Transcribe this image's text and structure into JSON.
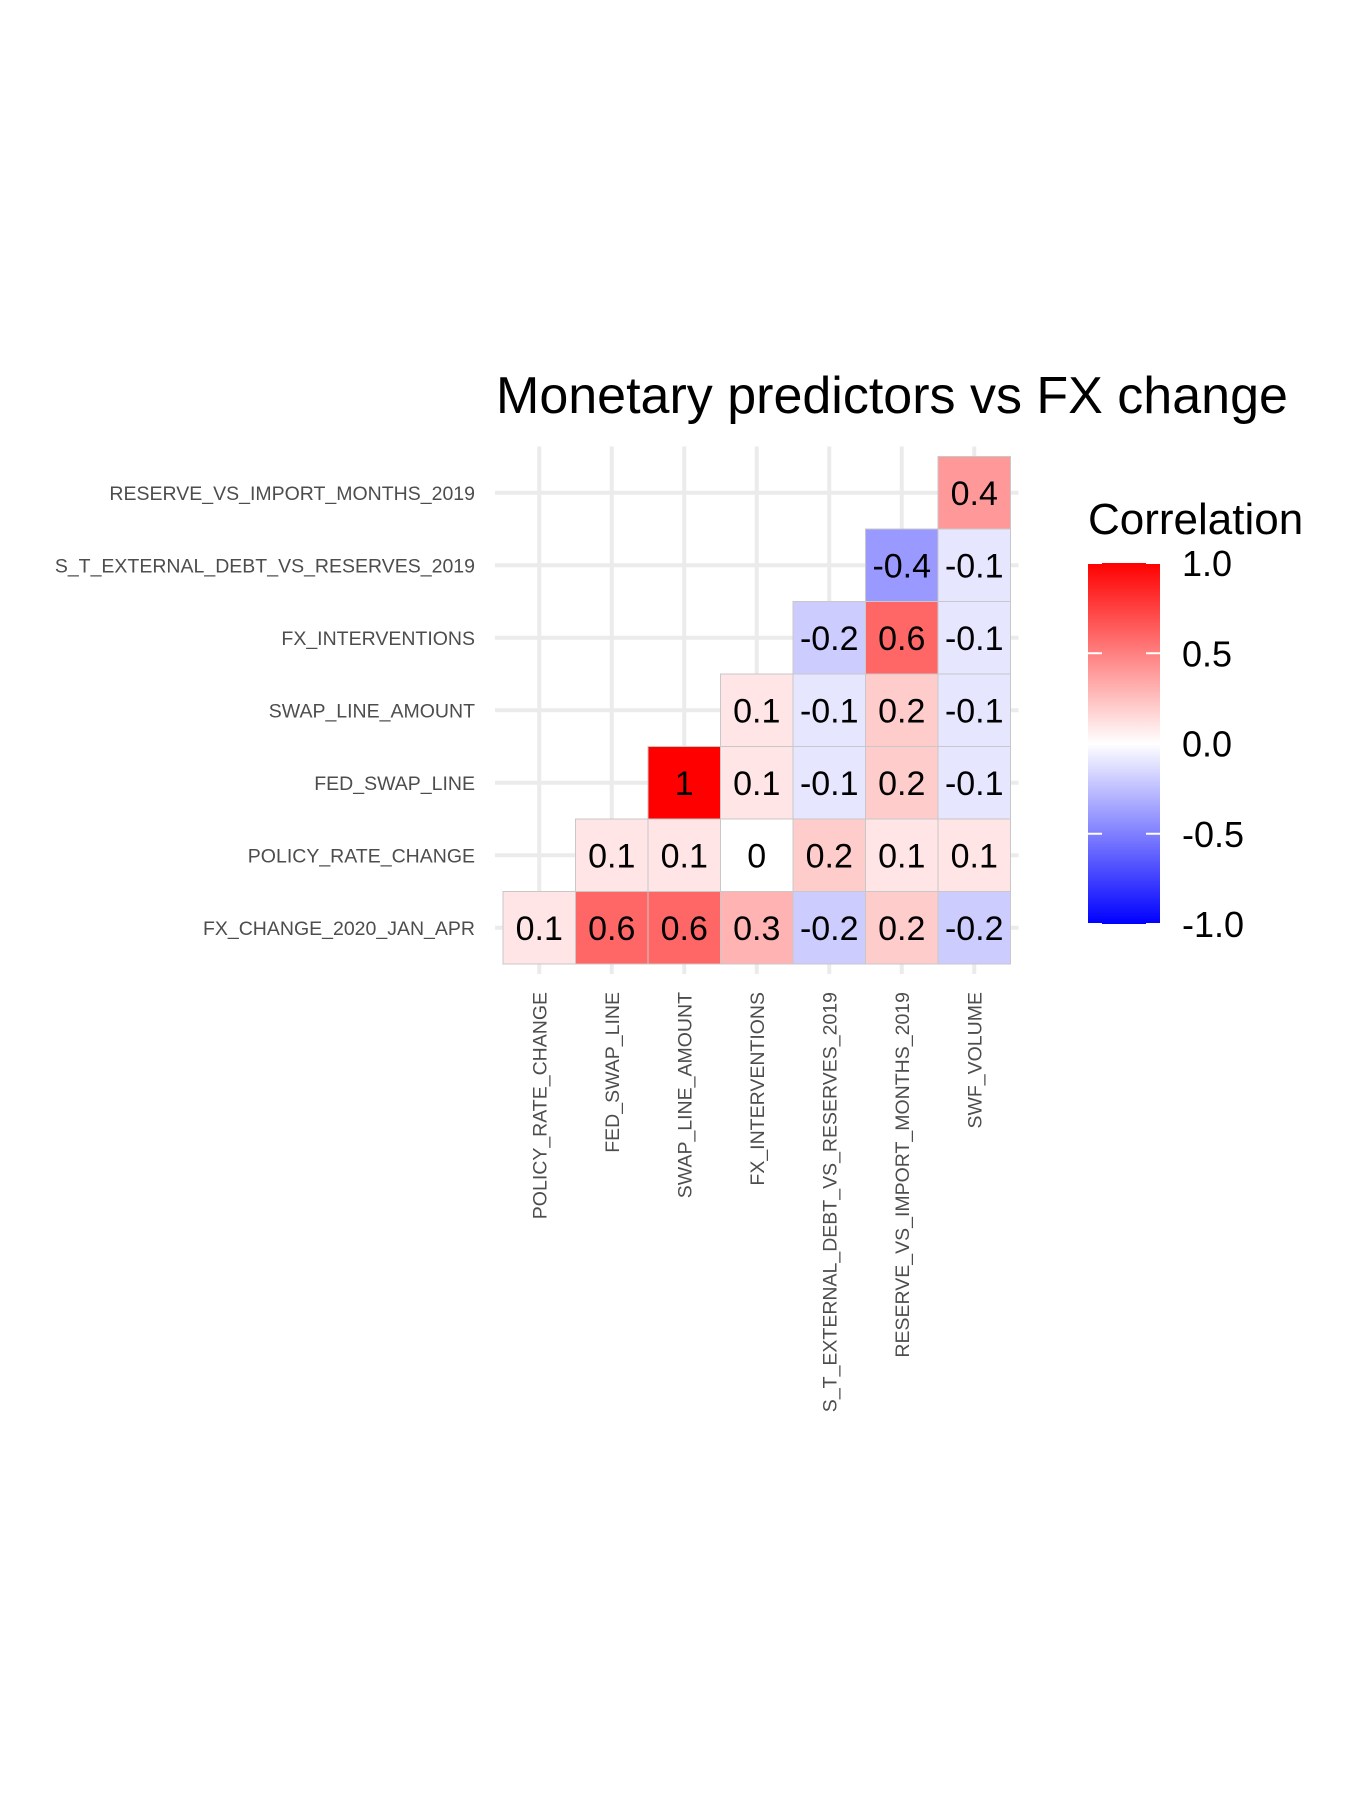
{
  "chart_data": {
    "type": "heatmap",
    "title": "Monetary predictors vs FX change",
    "x_categories": [
      "POLICY_RATE_CHANGE",
      "FED_SWAP_LINE",
      "SWAP_LINE_AMOUNT",
      "FX_INTERVENTIONS",
      "S_T_EXTERNAL_DEBT_VS_RESERVES_2019",
      "RESERVE_VS_IMPORT_MONTHS_2019",
      "SWF_VOLUME"
    ],
    "y_categories": [
      "FX_CHANGE_2020_JAN_APR",
      "POLICY_RATE_CHANGE",
      "FED_SWAP_LINE",
      "SWAP_LINE_AMOUNT",
      "FX_INTERVENTIONS",
      "S_T_EXTERNAL_DEBT_VS_RESERVES_2019",
      "RESERVE_VS_IMPORT_MONTHS_2019"
    ],
    "values": [
      [
        0.1,
        0.6,
        0.6,
        0.3,
        -0.2,
        0.2,
        -0.2
      ],
      [
        null,
        0.1,
        0.1,
        0,
        0.2,
        0.1,
        0.1
      ],
      [
        null,
        null,
        1,
        0.1,
        -0.1,
        0.2,
        -0.1
      ],
      [
        null,
        null,
        null,
        0.1,
        -0.1,
        0.2,
        -0.1
      ],
      [
        null,
        null,
        null,
        null,
        -0.2,
        0.6,
        -0.1
      ],
      [
        null,
        null,
        null,
        null,
        null,
        -0.4,
        -0.1
      ],
      [
        null,
        null,
        null,
        null,
        null,
        null,
        0.4
      ]
    ],
    "color_scale": {
      "low": "#0000ff",
      "mid": "#ffffff",
      "high": "#ff0000",
      "limits": [
        -1,
        1
      ]
    },
    "legend": {
      "title": "Correlation",
      "ticks": [
        "1.0",
        "0.5",
        "0.0",
        "-0.5",
        "-1.0"
      ],
      "tick_values": [
        1,
        0.5,
        0,
        -0.5,
        -1
      ],
      "position": "right"
    },
    "grid": true
  }
}
